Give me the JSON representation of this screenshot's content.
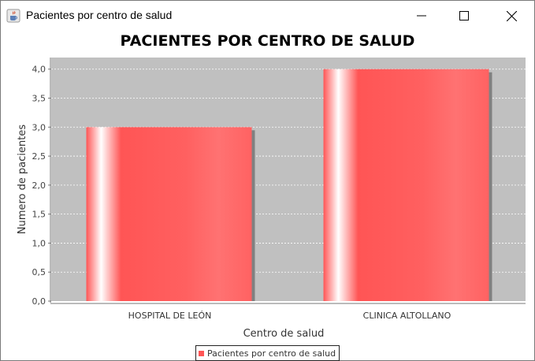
{
  "window": {
    "title": "Pacientes por centro de salud",
    "icon": "java-cup-icon",
    "controls": [
      "minimize-icon",
      "maximize-icon",
      "close-icon"
    ]
  },
  "chart_data": {
    "type": "bar",
    "title": "PACIENTES POR CENTRO DE SALUD",
    "xlabel": "Centro de salud",
    "ylabel": "Numero de pacientes",
    "categories": [
      "HOSPITAL DE LEÓN",
      "CLINICA ALTOLLANO"
    ],
    "series": [
      {
        "name": "Pacientes por centro de salud",
        "values": [
          3,
          4
        ],
        "color": "#ff5555"
      }
    ],
    "ylim": [
      0,
      4.2
    ],
    "yticks": [
      "0,0",
      "0,5",
      "1,0",
      "1,5",
      "2,0",
      "2,5",
      "3,0",
      "3,5",
      "4,0"
    ],
    "grid": true,
    "legend_position": "bottom",
    "plot_background": "#c0c0c0"
  }
}
